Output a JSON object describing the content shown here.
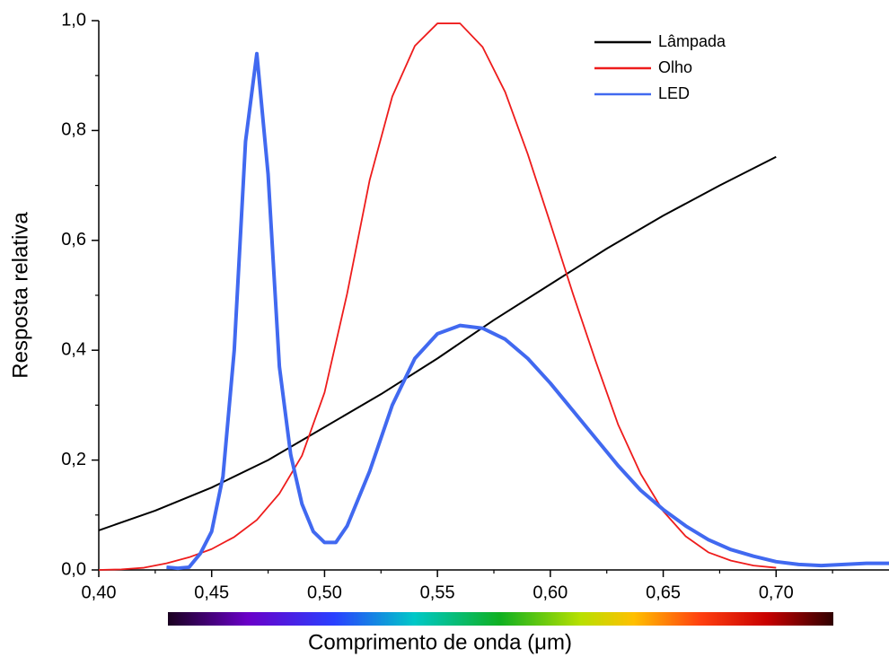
{
  "chart_data": {
    "type": "line",
    "xlabel": "Comprimento de onda (μm)",
    "ylabel": "Resposta relativa",
    "xlim": [
      0.4,
      0.75
    ],
    "ylim": [
      0,
      1.0
    ],
    "xticks": [
      {
        "value": 0.4,
        "label": "0,40"
      },
      {
        "value": 0.45,
        "label": "0,45"
      },
      {
        "value": 0.5,
        "label": "0,50"
      },
      {
        "value": 0.55,
        "label": "0,55"
      },
      {
        "value": 0.6,
        "label": "0,60"
      },
      {
        "value": 0.65,
        "label": "0,65"
      },
      {
        "value": 0.7,
        "label": "0,70"
      }
    ],
    "xminorticks": [
      0.425,
      0.475,
      0.525,
      0.575,
      0.625,
      0.675,
      0.725
    ],
    "yticks": [
      {
        "value": 0,
        "label": "0,0"
      },
      {
        "value": 0.2,
        "label": "0,2"
      },
      {
        "value": 0.4,
        "label": "0,4"
      },
      {
        "value": 0.6,
        "label": "0,6"
      },
      {
        "value": 0.8,
        "label": "0,8"
      },
      {
        "value": 1.0,
        "label": "1,0"
      }
    ],
    "yminorticks": [
      0.1,
      0.3,
      0.5,
      0.7,
      0.9
    ],
    "legend": "top-right",
    "series": [
      {
        "name": "Lâmpada",
        "color": "#000000",
        "width": 2,
        "x": [
          0.4,
          0.425,
          0.45,
          0.475,
          0.5,
          0.525,
          0.55,
          0.575,
          0.6,
          0.625,
          0.65,
          0.675,
          0.7
        ],
        "values": [
          0.072,
          0.108,
          0.15,
          0.2,
          0.26,
          0.32,
          0.385,
          0.455,
          0.52,
          0.585,
          0.645,
          0.7,
          0.752
        ]
      },
      {
        "name": "Olho",
        "color": "#ee1c1c",
        "width": 1.8,
        "x": [
          0.4,
          0.41,
          0.42,
          0.43,
          0.44,
          0.45,
          0.46,
          0.47,
          0.48,
          0.49,
          0.5,
          0.51,
          0.52,
          0.53,
          0.54,
          0.55,
          0.56,
          0.57,
          0.58,
          0.59,
          0.6,
          0.61,
          0.62,
          0.63,
          0.64,
          0.65,
          0.66,
          0.67,
          0.68,
          0.69,
          0.7
        ],
        "values": [
          0.0,
          0.001,
          0.004,
          0.012,
          0.023,
          0.038,
          0.06,
          0.091,
          0.139,
          0.208,
          0.323,
          0.503,
          0.71,
          0.862,
          0.954,
          0.995,
          0.995,
          0.952,
          0.87,
          0.757,
          0.631,
          0.503,
          0.381,
          0.265,
          0.175,
          0.107,
          0.061,
          0.032,
          0.017,
          0.008,
          0.004
        ]
      },
      {
        "name": "LED",
        "color": "#4169f0",
        "width": 4,
        "x": [
          0.43,
          0.435,
          0.44,
          0.445,
          0.45,
          0.455,
          0.46,
          0.465,
          0.47,
          0.475,
          0.48,
          0.485,
          0.49,
          0.495,
          0.5,
          0.505,
          0.51,
          0.52,
          0.53,
          0.54,
          0.55,
          0.56,
          0.57,
          0.58,
          0.59,
          0.6,
          0.61,
          0.62,
          0.63,
          0.64,
          0.65,
          0.66,
          0.67,
          0.68,
          0.69,
          0.7,
          0.71,
          0.72,
          0.73,
          0.74,
          0.75
        ],
        "values": [
          0.005,
          0.003,
          0.005,
          0.03,
          0.07,
          0.17,
          0.4,
          0.78,
          0.94,
          0.72,
          0.37,
          0.21,
          0.12,
          0.07,
          0.05,
          0.05,
          0.08,
          0.18,
          0.3,
          0.385,
          0.43,
          0.445,
          0.44,
          0.42,
          0.385,
          0.34,
          0.29,
          0.24,
          0.19,
          0.145,
          0.11,
          0.08,
          0.055,
          0.037,
          0.025,
          0.015,
          0.01,
          0.008,
          0.01,
          0.012,
          0.012
        ]
      }
    ]
  }
}
